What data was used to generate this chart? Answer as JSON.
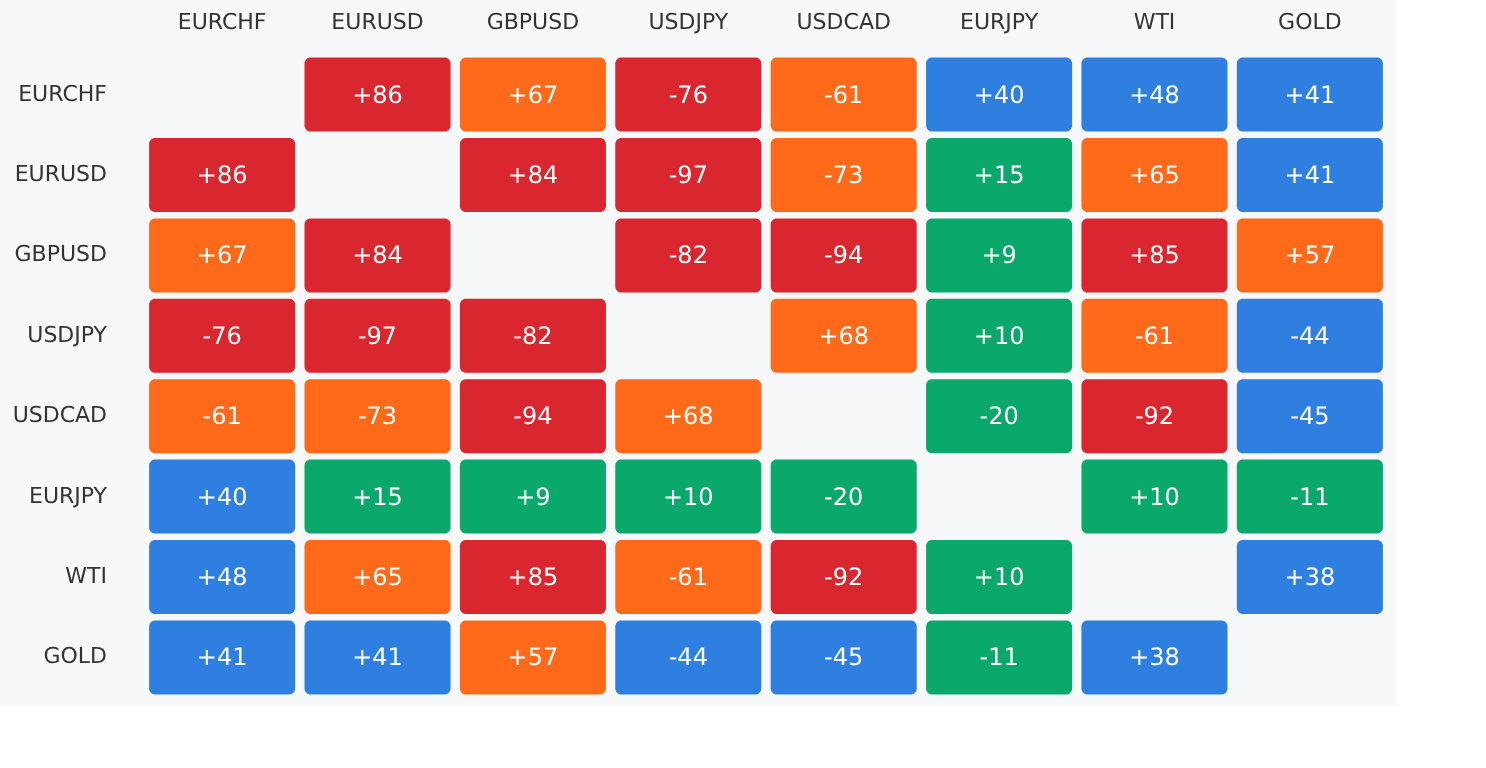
{
  "chart_data": {
    "type": "heatmap",
    "categories": [
      "EURCHF",
      "EURUSD",
      "GBPUSD",
      "USDJPY",
      "USDCAD",
      "EURJPY",
      "WTI",
      "GOLD"
    ],
    "y_categories": [
      "EURCHF",
      "EURUSD",
      "GBPUSD",
      "USDJPY",
      "USDCAD",
      "EURJPY",
      "WTI",
      "GOLD"
    ],
    "cells": [
      [
        null,
        86,
        67,
        -76,
        -61,
        40,
        48,
        41
      ],
      [
        86,
        null,
        84,
        -97,
        -73,
        15,
        65,
        41
      ],
      [
        67,
        84,
        null,
        -82,
        -94,
        9,
        85,
        57
      ],
      [
        -76,
        -97,
        -82,
        null,
        68,
        10,
        -61,
        -44
      ],
      [
        -61,
        -73,
        -94,
        68,
        null,
        -20,
        -92,
        -45
      ],
      [
        40,
        15,
        9,
        10,
        -20,
        null,
        10,
        -11
      ],
      [
        48,
        65,
        85,
        -61,
        -92,
        10,
        null,
        38
      ],
      [
        41,
        41,
        57,
        -44,
        -45,
        -11,
        38,
        null
      ]
    ],
    "cell_labels": [
      [
        null,
        "+86",
        "+67",
        "-76",
        "-61",
        "+40",
        "+48",
        "+41"
      ],
      [
        "+86",
        null,
        "+84",
        "-97",
        "-73",
        "+15",
        "+65",
        "+41"
      ],
      [
        "+67",
        "+84",
        null,
        "-82",
        "-94",
        "+9",
        "+85",
        "+57"
      ],
      [
        "-76",
        "-97",
        "-82",
        null,
        "+68",
        "+10",
        "-61",
        "-44"
      ],
      [
        "-61",
        "-73",
        "-94",
        "+68",
        null,
        "-20",
        "-92",
        "-45"
      ],
      [
        "+40",
        "+15",
        "+9",
        "+10",
        "-20",
        null,
        "+10",
        "-11"
      ],
      [
        "+48",
        "+65",
        "+85",
        "-61",
        "-92",
        "+10",
        null,
        "+38"
      ],
      [
        "+41",
        "+41",
        "+57",
        "-44",
        "-45",
        "-11",
        "+38",
        null
      ]
    ]
  }
}
